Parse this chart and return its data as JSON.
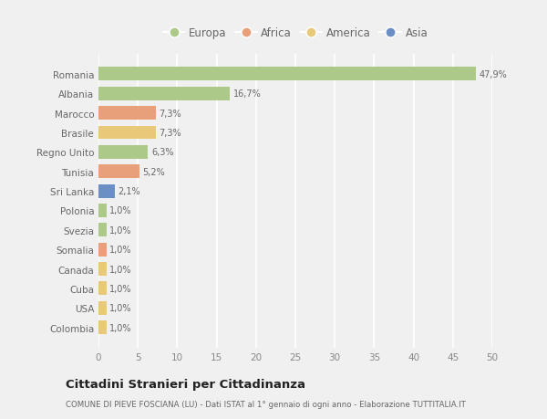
{
  "countries": [
    "Colombia",
    "USA",
    "Cuba",
    "Canada",
    "Somalia",
    "Svezia",
    "Polonia",
    "Sri Lanka",
    "Tunisia",
    "Regno Unito",
    "Brasile",
    "Marocco",
    "Albania",
    "Romania"
  ],
  "values": [
    1.0,
    1.0,
    1.0,
    1.0,
    1.0,
    1.0,
    1.0,
    2.1,
    5.2,
    6.3,
    7.3,
    7.3,
    16.7,
    47.9
  ],
  "labels": [
    "1,0%",
    "1,0%",
    "1,0%",
    "1,0%",
    "1,0%",
    "1,0%",
    "1,0%",
    "2,1%",
    "5,2%",
    "6,3%",
    "7,3%",
    "7,3%",
    "16,7%",
    "47,9%"
  ],
  "colors": [
    "#e8c97a",
    "#e8c97a",
    "#e8c97a",
    "#e8c97a",
    "#e8a07a",
    "#adc98a",
    "#adc98a",
    "#6b8ec4",
    "#e8a07a",
    "#adc98a",
    "#e8c97a",
    "#e8a07a",
    "#adc98a",
    "#adc98a"
  ],
  "legend": [
    {
      "label": "Europa",
      "color": "#adc98a"
    },
    {
      "label": "Africa",
      "color": "#e8a07a"
    },
    {
      "label": "America",
      "color": "#e8c97a"
    },
    {
      "label": "Asia",
      "color": "#6b8ec4"
    }
  ],
  "title": "Cittadini Stranieri per Cittadinanza",
  "subtitle": "COMUNE DI PIEVE FOSCIANA (LU) - Dati ISTAT al 1° gennaio di ogni anno - Elaborazione TUTTITALIA.IT",
  "xlim": [
    0,
    50
  ],
  "xticks": [
    0,
    5,
    10,
    15,
    20,
    25,
    30,
    35,
    40,
    45,
    50
  ],
  "background_color": "#f0f0f0",
  "grid_color": "#ffffff",
  "bar_height": 0.7
}
